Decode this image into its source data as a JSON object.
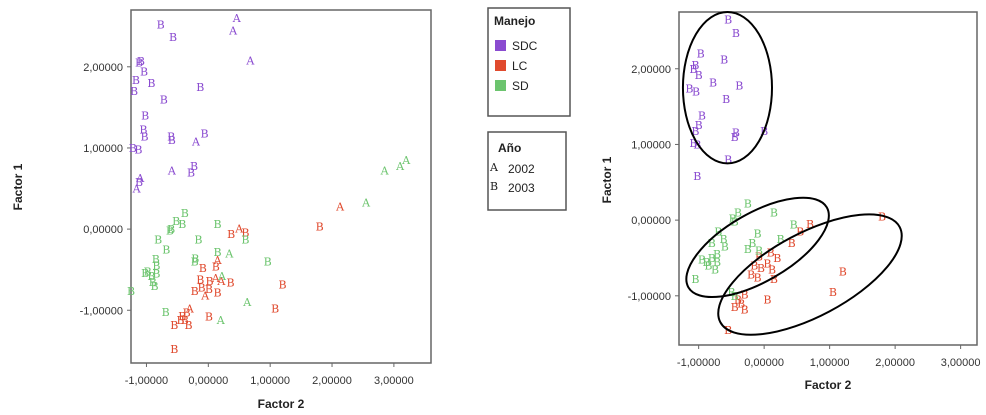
{
  "chart_data": [
    {
      "type": "scatter",
      "xlabel": "Factor 2",
      "ylabel": "Factor 1",
      "xlim": [
        -1.25,
        3.6
      ],
      "ylim": [
        -1.65,
        2.7
      ],
      "xticks": [
        -1.0,
        0.0,
        1.0,
        2.0,
        3.0
      ],
      "yticks": [
        -1.0,
        0.0,
        1.0,
        2.0
      ],
      "xtick_labels": [
        "-1,00000",
        "0,00000",
        "1,00000",
        "2,00000",
        "3,00000"
      ],
      "ytick_labels": [
        "-1,00000",
        "0,00000",
        "1,00000",
        "2,00000"
      ],
      "grid": false,
      "legends": [
        {
          "title": "Manejo",
          "placement": "right",
          "entries": [
            {
              "label": "SDC",
              "color": "#8a4bd0"
            },
            {
              "label": "LC",
              "color": "#e04a2e"
            },
            {
              "label": "SD",
              "color": "#6cc46e"
            }
          ]
        },
        {
          "title": "Año",
          "placement": "right",
          "entries": [
            {
              "marker": "A",
              "label": "2002"
            },
            {
              "marker": "B",
              "label": "2003"
            }
          ]
        }
      ],
      "series": [
        {
          "name": "SDC",
          "color": "#8a4bd0",
          "points": [
            {
              "x": -0.77,
              "y": 2.52,
              "m": "B"
            },
            {
              "x": 0.46,
              "y": 2.6,
              "m": "A"
            },
            {
              "x": 0.4,
              "y": 2.45,
              "m": "A"
            },
            {
              "x": -0.57,
              "y": 2.37,
              "m": "B"
            },
            {
              "x": 0.68,
              "y": 2.08,
              "m": "A"
            },
            {
              "x": -1.09,
              "y": 2.07,
              "m": "B"
            },
            {
              "x": -1.12,
              "y": 2.05,
              "m": "B"
            },
            {
              "x": -1.04,
              "y": 1.94,
              "m": "B"
            },
            {
              "x": -1.17,
              "y": 1.84,
              "m": "B"
            },
            {
              "x": -0.92,
              "y": 1.8,
              "m": "B"
            },
            {
              "x": -0.13,
              "y": 1.75,
              "m": "B"
            },
            {
              "x": -1.2,
              "y": 1.7,
              "m": "B"
            },
            {
              "x": -0.72,
              "y": 1.6,
              "m": "B"
            },
            {
              "x": -1.02,
              "y": 1.4,
              "m": "B"
            },
            {
              "x": -1.05,
              "y": 1.23,
              "m": "B"
            },
            {
              "x": -0.06,
              "y": 1.18,
              "m": "B"
            },
            {
              "x": -1.03,
              "y": 1.14,
              "m": "B"
            },
            {
              "x": -0.6,
              "y": 1.14,
              "m": "B"
            },
            {
              "x": -0.59,
              "y": 1.1,
              "m": "B"
            },
            {
              "x": -0.2,
              "y": 1.08,
              "m": "A"
            },
            {
              "x": -1.22,
              "y": 1.0,
              "m": "B"
            },
            {
              "x": -1.13,
              "y": 0.98,
              "m": "B"
            },
            {
              "x": -0.23,
              "y": 0.78,
              "m": "B"
            },
            {
              "x": -0.59,
              "y": 0.72,
              "m": "A"
            },
            {
              "x": -0.28,
              "y": 0.7,
              "m": "B"
            },
            {
              "x": -1.1,
              "y": 0.63,
              "m": "A"
            },
            {
              "x": -1.12,
              "y": 0.58,
              "m": "B"
            },
            {
              "x": -1.16,
              "y": 0.5,
              "m": "A"
            }
          ]
        },
        {
          "name": "LC",
          "color": "#e04a2e",
          "points": [
            {
              "x": 2.13,
              "y": 0.28,
              "m": "A"
            },
            {
              "x": 1.8,
              "y": 0.03,
              "m": "B"
            },
            {
              "x": 0.5,
              "y": 0.01,
              "m": "A"
            },
            {
              "x": 0.6,
              "y": -0.04,
              "m": "B"
            },
            {
              "x": 0.37,
              "y": -0.06,
              "m": "B"
            },
            {
              "x": 0.15,
              "y": -0.38,
              "m": "A"
            },
            {
              "x": 0.12,
              "y": -0.46,
              "m": "B"
            },
            {
              "x": -0.09,
              "y": -0.48,
              "m": "B"
            },
            {
              "x": 0.12,
              "y": -0.6,
              "m": "A"
            },
            {
              "x": -0.13,
              "y": -0.62,
              "m": "B"
            },
            {
              "x": 0.02,
              "y": -0.64,
              "m": "B"
            },
            {
              "x": 0.21,
              "y": -0.64,
              "m": "A"
            },
            {
              "x": 0.36,
              "y": -0.66,
              "m": "B"
            },
            {
              "x": 1.2,
              "y": -0.68,
              "m": "B"
            },
            {
              "x": -0.11,
              "y": -0.72,
              "m": "B"
            },
            {
              "x": 0.01,
              "y": -0.74,
              "m": "B"
            },
            {
              "x": -0.22,
              "y": -0.76,
              "m": "B"
            },
            {
              "x": 0.15,
              "y": -0.78,
              "m": "B"
            },
            {
              "x": -0.05,
              "y": -0.82,
              "m": "A"
            },
            {
              "x": 1.08,
              "y": -0.98,
              "m": "B"
            },
            {
              "x": -0.3,
              "y": -0.98,
              "m": "A"
            },
            {
              "x": -0.35,
              "y": -1.03,
              "m": "B"
            },
            {
              "x": -0.42,
              "y": -1.07,
              "m": "B"
            },
            {
              "x": 0.01,
              "y": -1.08,
              "m": "B"
            },
            {
              "x": -0.45,
              "y": -1.12,
              "m": "B"
            },
            {
              "x": -0.38,
              "y": -1.12,
              "m": "B"
            },
            {
              "x": -0.55,
              "y": -1.18,
              "m": "B"
            },
            {
              "x": -0.32,
              "y": -1.18,
              "m": "B"
            },
            {
              "x": -0.55,
              "y": -1.48,
              "m": "B"
            }
          ]
        },
        {
          "name": "SD",
          "color": "#6cc46e",
          "points": [
            {
              "x": 3.2,
              "y": 0.85,
              "m": "A"
            },
            {
              "x": 3.1,
              "y": 0.78,
              "m": "A"
            },
            {
              "x": 2.85,
              "y": 0.72,
              "m": "A"
            },
            {
              "x": 2.55,
              "y": 0.33,
              "m": "A"
            },
            {
              "x": -0.38,
              "y": 0.2,
              "m": "B"
            },
            {
              "x": -0.52,
              "y": 0.1,
              "m": "B"
            },
            {
              "x": -0.42,
              "y": 0.06,
              "m": "B"
            },
            {
              "x": 0.15,
              "y": 0.06,
              "m": "B"
            },
            {
              "x": -0.6,
              "y": 0.0,
              "m": "B"
            },
            {
              "x": -0.62,
              "y": -0.02,
              "m": "B"
            },
            {
              "x": -0.81,
              "y": -0.13,
              "m": "B"
            },
            {
              "x": -0.16,
              "y": -0.13,
              "m": "B"
            },
            {
              "x": 0.6,
              "y": -0.13,
              "m": "B"
            },
            {
              "x": -0.68,
              "y": -0.25,
              "m": "B"
            },
            {
              "x": 0.15,
              "y": -0.28,
              "m": "B"
            },
            {
              "x": 0.34,
              "y": -0.3,
              "m": "A"
            },
            {
              "x": -0.21,
              "y": -0.36,
              "m": "B"
            },
            {
              "x": -0.85,
              "y": -0.37,
              "m": "B"
            },
            {
              "x": -0.22,
              "y": -0.4,
              "m": "B"
            },
            {
              "x": 0.96,
              "y": -0.4,
              "m": "B"
            },
            {
              "x": -0.84,
              "y": -0.45,
              "m": "B"
            },
            {
              "x": -0.98,
              "y": -0.52,
              "m": "B"
            },
            {
              "x": -1.02,
              "y": -0.54,
              "m": "B"
            },
            {
              "x": -0.84,
              "y": -0.55,
              "m": "B"
            },
            {
              "x": 0.22,
              "y": -0.58,
              "m": "A"
            },
            {
              "x": -0.92,
              "y": -0.58,
              "m": "B"
            },
            {
              "x": -0.9,
              "y": -0.65,
              "m": "B"
            },
            {
              "x": -0.87,
              "y": -0.7,
              "m": "B"
            },
            {
              "x": -1.25,
              "y": -0.76,
              "m": "B"
            },
            {
              "x": 0.63,
              "y": -0.9,
              "m": "A"
            },
            {
              "x": -0.69,
              "y": -1.02,
              "m": "B"
            },
            {
              "x": 0.2,
              "y": -1.12,
              "m": "A"
            }
          ]
        }
      ]
    },
    {
      "type": "scatter",
      "xlabel": "Factor 2",
      "ylabel": "Factor 1",
      "xlim": [
        -1.3,
        3.25
      ],
      "ylim": [
        -1.65,
        2.75
      ],
      "xticks": [
        -1.0,
        0.0,
        1.0,
        2.0,
        3.0
      ],
      "yticks": [
        -1.0,
        0.0,
        1.0,
        2.0
      ],
      "xtick_labels": [
        "-1,00000",
        "0,00000",
        "1,00000",
        "2,00000",
        "3,00000"
      ],
      "ytick_labels": [
        "-1,00000",
        "0,00000",
        "1,00000",
        "2,00000"
      ],
      "grid": false,
      "ellipses": [
        {
          "cx": -0.56,
          "cy": 1.75,
          "rx": 0.68,
          "ry": 1.0,
          "angle": 0
        },
        {
          "cx": -0.1,
          "cy": -0.36,
          "rx": 1.22,
          "ry": 0.45,
          "angle": -30
        },
        {
          "cx": 0.7,
          "cy": -0.72,
          "rx": 1.55,
          "ry": 0.55,
          "angle": -28
        }
      ],
      "series": [
        {
          "name": "SDC",
          "color": "#8a4bd0",
          "points": [
            {
              "x": -0.55,
              "y": 2.65,
              "m": "B"
            },
            {
              "x": -0.43,
              "y": 2.47,
              "m": "B"
            },
            {
              "x": -0.97,
              "y": 2.2,
              "m": "B"
            },
            {
              "x": -0.61,
              "y": 2.12,
              "m": "B"
            },
            {
              "x": -1.05,
              "y": 2.05,
              "m": "B"
            },
            {
              "x": -1.08,
              "y": 2.0,
              "m": "B"
            },
            {
              "x": -1.0,
              "y": 1.92,
              "m": "B"
            },
            {
              "x": -0.78,
              "y": 1.82,
              "m": "B"
            },
            {
              "x": -1.14,
              "y": 1.74,
              "m": "B"
            },
            {
              "x": -0.38,
              "y": 1.78,
              "m": "B"
            },
            {
              "x": -1.04,
              "y": 1.7,
              "m": "B"
            },
            {
              "x": -0.58,
              "y": 1.6,
              "m": "B"
            },
            {
              "x": -0.95,
              "y": 1.38,
              "m": "B"
            },
            {
              "x": -1.0,
              "y": 1.26,
              "m": "B"
            },
            {
              "x": 0.0,
              "y": 1.18,
              "m": "B"
            },
            {
              "x": -1.05,
              "y": 1.18,
              "m": "B"
            },
            {
              "x": -0.43,
              "y": 1.16,
              "m": "B"
            },
            {
              "x": -0.45,
              "y": 1.1,
              "m": "B"
            },
            {
              "x": -1.08,
              "y": 1.02,
              "m": "B"
            },
            {
              "x": -1.02,
              "y": 1.0,
              "m": "B"
            },
            {
              "x": -0.55,
              "y": 0.8,
              "m": "B"
            },
            {
              "x": -1.02,
              "y": 0.58,
              "m": "B"
            }
          ]
        },
        {
          "name": "LC",
          "color": "#e04a2e",
          "points": [
            {
              "x": 1.8,
              "y": 0.05,
              "m": "B"
            },
            {
              "x": 0.7,
              "y": -0.05,
              "m": "B"
            },
            {
              "x": 0.55,
              "y": -0.15,
              "m": "B"
            },
            {
              "x": 0.42,
              "y": -0.3,
              "m": "B"
            },
            {
              "x": 0.1,
              "y": -0.43,
              "m": "B"
            },
            {
              "x": -0.08,
              "y": -0.48,
              "m": "B"
            },
            {
              "x": 0.2,
              "y": -0.5,
              "m": "B"
            },
            {
              "x": 0.05,
              "y": -0.57,
              "m": "B"
            },
            {
              "x": -0.15,
              "y": -0.6,
              "m": "B"
            },
            {
              "x": -0.05,
              "y": -0.63,
              "m": "B"
            },
            {
              "x": 0.12,
              "y": -0.65,
              "m": "B"
            },
            {
              "x": 1.2,
              "y": -0.68,
              "m": "B"
            },
            {
              "x": -0.2,
              "y": -0.72,
              "m": "B"
            },
            {
              "x": -0.1,
              "y": -0.76,
              "m": "B"
            },
            {
              "x": 0.15,
              "y": -0.78,
              "m": "B"
            },
            {
              "x": 1.05,
              "y": -0.95,
              "m": "B"
            },
            {
              "x": -0.3,
              "y": -0.98,
              "m": "B"
            },
            {
              "x": -0.4,
              "y": -1.05,
              "m": "B"
            },
            {
              "x": 0.05,
              "y": -1.05,
              "m": "B"
            },
            {
              "x": -0.35,
              "y": -1.1,
              "m": "B"
            },
            {
              "x": -0.45,
              "y": -1.15,
              "m": "B"
            },
            {
              "x": -0.3,
              "y": -1.18,
              "m": "B"
            },
            {
              "x": -0.55,
              "y": -1.45,
              "m": "B"
            }
          ]
        },
        {
          "name": "SD",
          "color": "#6cc46e",
          "points": [
            {
              "x": -0.25,
              "y": 0.22,
              "m": "B"
            },
            {
              "x": -0.4,
              "y": 0.1,
              "m": "B"
            },
            {
              "x": 0.15,
              "y": 0.1,
              "m": "B"
            },
            {
              "x": -0.48,
              "y": 0.02,
              "m": "B"
            },
            {
              "x": -0.45,
              "y": -0.02,
              "m": "B"
            },
            {
              "x": 0.45,
              "y": -0.06,
              "m": "B"
            },
            {
              "x": -0.7,
              "y": -0.15,
              "m": "B"
            },
            {
              "x": -0.1,
              "y": -0.18,
              "m": "B"
            },
            {
              "x": -0.62,
              "y": -0.25,
              "m": "B"
            },
            {
              "x": 0.25,
              "y": -0.25,
              "m": "B"
            },
            {
              "x": -0.8,
              "y": -0.3,
              "m": "B"
            },
            {
              "x": -0.18,
              "y": -0.3,
              "m": "B"
            },
            {
              "x": -0.6,
              "y": -0.35,
              "m": "B"
            },
            {
              "x": -0.25,
              "y": -0.38,
              "m": "B"
            },
            {
              "x": -0.08,
              "y": -0.4,
              "m": "B"
            },
            {
              "x": -0.72,
              "y": -0.45,
              "m": "B"
            },
            {
              "x": -0.8,
              "y": -0.5,
              "m": "B"
            },
            {
              "x": -0.95,
              "y": -0.52,
              "m": "B"
            },
            {
              "x": -0.88,
              "y": -0.55,
              "m": "B"
            },
            {
              "x": -0.72,
              "y": -0.55,
              "m": "B"
            },
            {
              "x": -0.85,
              "y": -0.6,
              "m": "B"
            },
            {
              "x": -0.75,
              "y": -0.65,
              "m": "B"
            },
            {
              "x": -1.05,
              "y": -0.78,
              "m": "B"
            },
            {
              "x": -0.5,
              "y": -0.95,
              "m": "B"
            },
            {
              "x": -0.45,
              "y": -1.0,
              "m": "B"
            }
          ]
        }
      ]
    }
  ]
}
